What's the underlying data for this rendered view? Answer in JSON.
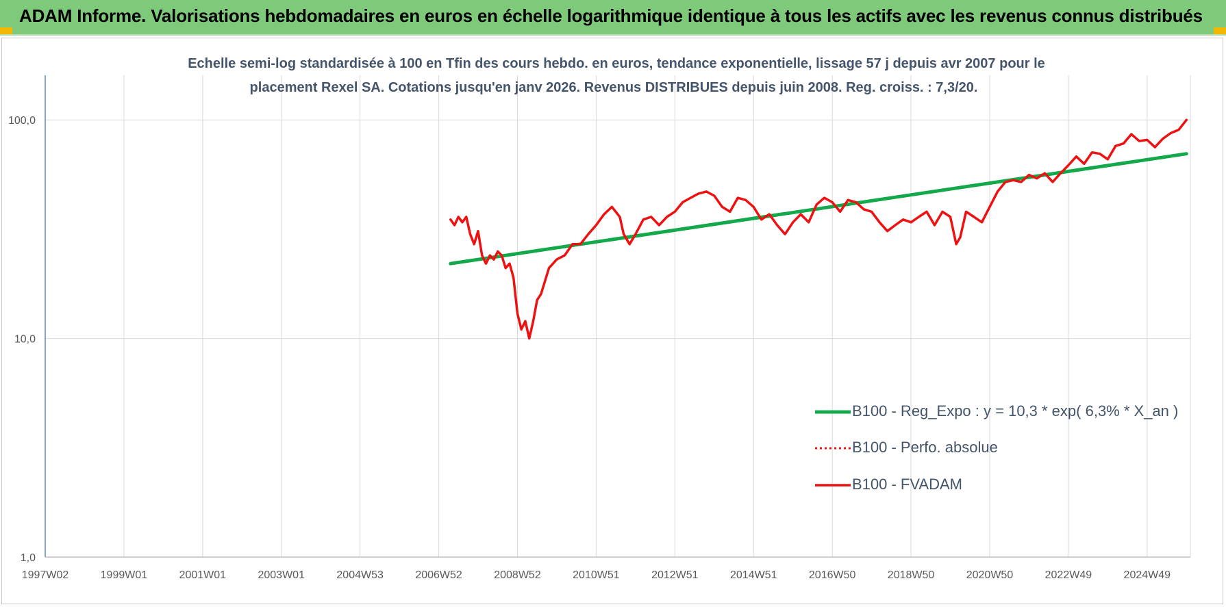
{
  "header": {
    "title": "ADAM Informe. Valorisations hebdomadaires en euros en échelle logarithmique identique à tous les actifs avec les revenus connus distribués"
  },
  "colors": {
    "title_bar": "#7fc97a",
    "accent_corner": "#f2b705",
    "trend_line": "#13a84a",
    "fvadam_line": "#ee1111",
    "perf_line": "#ee1111",
    "axis": "#5b8ac4",
    "grid": "#d9d9d9"
  },
  "chart_data": {
    "type": "line",
    "title_lines": [
      "Echelle semi-log standardisée à 100 en Tfin des cours hebdo. en euros, tendance exponentielle, lissage 57 j depuis avr 2007 pour le",
      "placement Rexel SA.  Cotations jusqu'en janv 2026. Revenus DISTRIBUES depuis juin 2008. Reg. croiss. : 7,3/20."
    ],
    "y_scale": "log",
    "ylim": [
      1,
      160
    ],
    "y_ticks": [
      {
        "value": 1,
        "label": "1,0"
      },
      {
        "value": 10,
        "label": "10,0"
      },
      {
        "value": 100,
        "label": "100,0"
      }
    ],
    "xlim": [
      1997.0,
      2026.1
    ],
    "x_ticks": [
      {
        "value": 1997.0,
        "label": "1997W02"
      },
      {
        "value": 1999.0,
        "label": "1999W01"
      },
      {
        "value": 2001.0,
        "label": "2001W01"
      },
      {
        "value": 2003.0,
        "label": "2003W01"
      },
      {
        "value": 2005.0,
        "label": "2004W53"
      },
      {
        "value": 2007.0,
        "label": "2006W52"
      },
      {
        "value": 2009.0,
        "label": "2008W52"
      },
      {
        "value": 2011.0,
        "label": "2010W51"
      },
      {
        "value": 2013.0,
        "label": "2012W51"
      },
      {
        "value": 2015.0,
        "label": "2014W51"
      },
      {
        "value": 2017.0,
        "label": "2016W50"
      },
      {
        "value": 2019.0,
        "label": "2018W50"
      },
      {
        "value": 2021.0,
        "label": "2020W50"
      },
      {
        "value": 2023.0,
        "label": "2022W49"
      },
      {
        "value": 2025.0,
        "label": "2024W49"
      }
    ],
    "grid": true,
    "legend_position": "bottom-right",
    "series": [
      {
        "name": "B100 - Reg_Expo : y = 10,3 * exp( 6,3% *  X_an )",
        "style": "solid-thick",
        "x": [
          2007.3,
          2026.0
        ],
        "y": [
          22.0,
          70.0
        ]
      },
      {
        "name": "B100 - Perfo. absolue",
        "style": "dotted",
        "x": [],
        "y": []
      },
      {
        "name": "B100 - FVADAM",
        "style": "solid",
        "x": [
          2007.3,
          2007.4,
          2007.5,
          2007.6,
          2007.7,
          2007.8,
          2007.9,
          2008.0,
          2008.1,
          2008.2,
          2008.3,
          2008.4,
          2008.5,
          2008.6,
          2008.7,
          2008.8,
          2008.9,
          2009.0,
          2009.1,
          2009.2,
          2009.3,
          2009.4,
          2009.5,
          2009.6,
          2009.8,
          2010.0,
          2010.2,
          2010.4,
          2010.6,
          2010.8,
          2011.0,
          2011.2,
          2011.4,
          2011.6,
          2011.7,
          2011.85,
          2012.0,
          2012.2,
          2012.4,
          2012.6,
          2012.8,
          2013.0,
          2013.2,
          2013.4,
          2013.6,
          2013.8,
          2014.0,
          2014.2,
          2014.4,
          2014.6,
          2014.8,
          2015.0,
          2015.2,
          2015.4,
          2015.6,
          2015.8,
          2016.0,
          2016.2,
          2016.4,
          2016.6,
          2016.8,
          2017.0,
          2017.2,
          2017.4,
          2017.6,
          2017.8,
          2018.0,
          2018.2,
          2018.4,
          2018.6,
          2018.8,
          2019.0,
          2019.2,
          2019.4,
          2019.6,
          2019.8,
          2020.0,
          2020.15,
          2020.25,
          2020.4,
          2020.6,
          2020.8,
          2021.0,
          2021.2,
          2021.4,
          2021.6,
          2021.8,
          2022.0,
          2022.2,
          2022.4,
          2022.6,
          2022.8,
          2023.0,
          2023.2,
          2023.4,
          2023.6,
          2023.8,
          2024.0,
          2024.2,
          2024.4,
          2024.6,
          2024.8,
          2025.0,
          2025.2,
          2025.4,
          2025.6,
          2025.8,
          2026.0
        ],
        "y": [
          35,
          33,
          36,
          34,
          36,
          30,
          27,
          31,
          24,
          22,
          24,
          23,
          25,
          24,
          21,
          22,
          19,
          13,
          11,
          12,
          10,
          12,
          15,
          16,
          21,
          23,
          24,
          27,
          27,
          30,
          33,
          37,
          40,
          36,
          30,
          27,
          30,
          35,
          36,
          33,
          36,
          38,
          42,
          44,
          46,
          47,
          45,
          40,
          38,
          44,
          43,
          40,
          35,
          37,
          33,
          30,
          34,
          37,
          34,
          41,
          44,
          42,
          38,
          43,
          42,
          39,
          38,
          34,
          31,
          33,
          35,
          34,
          36,
          38,
          33,
          38,
          36,
          27,
          29,
          38,
          36,
          34,
          40,
          47,
          52,
          53,
          52,
          56,
          54,
          57,
          52,
          57,
          62,
          68,
          63,
          71,
          70,
          66,
          76,
          78,
          86,
          80,
          81,
          75,
          82,
          87,
          90,
          100
        ]
      }
    ]
  }
}
